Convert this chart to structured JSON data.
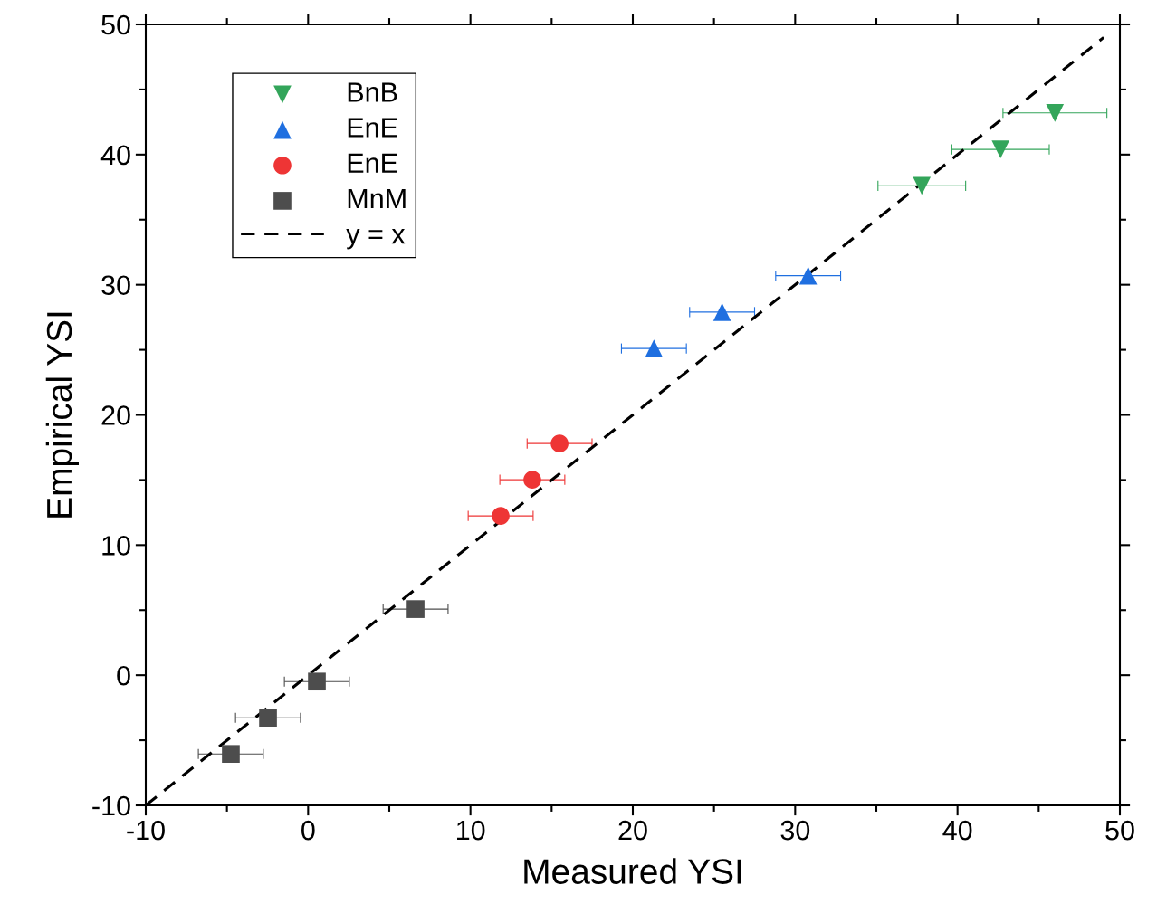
{
  "chart_data": {
    "type": "scatter",
    "xlabel": "Measured YSI",
    "ylabel": "Empirical YSI",
    "xlim": [
      -10,
      50
    ],
    "ylim": [
      -10,
      50
    ],
    "xticks": [
      -10,
      0,
      10,
      20,
      30,
      40,
      50
    ],
    "yticks": [
      -10,
      0,
      10,
      20,
      30,
      40,
      50
    ],
    "legend": "top left",
    "grid": false,
    "series": [
      {
        "name": "BnB",
        "color": "#33a55a",
        "marker": "triangle_down",
        "x": [
          37.8,
          42.65,
          46.0
        ],
        "values": [
          37.6,
          40.4,
          43.2
        ],
        "xerrors": [
          2.7,
          3.0,
          3.2
        ]
      },
      {
        "name": "EnE",
        "color": "#1f6fe0",
        "marker": "triangle",
        "x": [
          21.3,
          25.5,
          30.8
        ],
        "values": [
          25.1,
          27.9,
          30.7
        ],
        "xerrors": [
          2.0,
          2.0,
          2.0
        ]
      },
      {
        "name": "EnE",
        "color": "#ee3535",
        "marker": "circle",
        "x": [
          11.86,
          13.81,
          15.49
        ],
        "values": [
          12.24,
          15.02,
          17.8
        ],
        "xerrors": [
          2.0,
          2.0,
          2.0
        ]
      },
      {
        "name": "MnM",
        "color": "#4d4d4d",
        "marker": "square",
        "x": [
          -4.76,
          -2.47,
          0.54,
          6.62
        ],
        "values": [
          -6.05,
          -3.27,
          -0.49,
          5.08
        ],
        "xerrors": [
          2.0,
          2.0,
          2.0,
          2.0
        ]
      },
      {
        "name": "y = x",
        "type": "line",
        "color": "#000000",
        "line_style": "dashed",
        "marker": "none",
        "x": [
          -10,
          49
        ],
        "values": [
          -10,
          49
        ]
      }
    ]
  }
}
